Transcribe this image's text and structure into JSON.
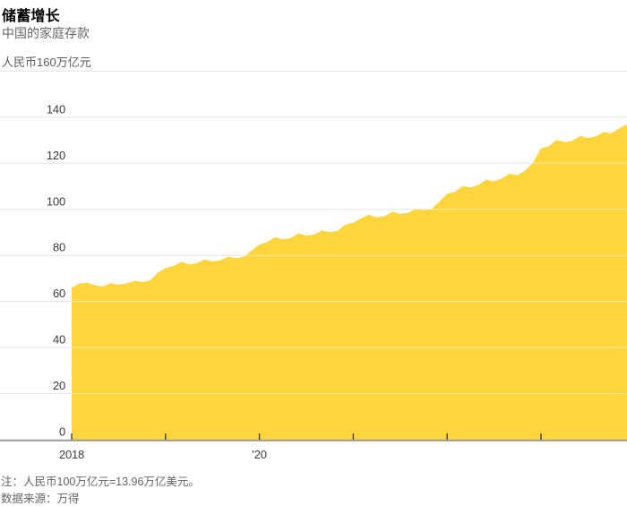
{
  "header": {
    "title": "储蓄增长",
    "subtitle": "中国的家庭存款",
    "unit_label": "人民币160万亿元"
  },
  "footer": {
    "note": "注：人民币100万亿元=13.96万亿美元。",
    "source": "数据来源：万得"
  },
  "chart_data": {
    "type": "area",
    "title": "储蓄增长",
    "subtitle": "中国的家庭存款",
    "ylabel_unit": "人民币160万亿元",
    "frequency": "monthly",
    "x_start": "2018-01",
    "x_end": "2023-12",
    "series": [
      {
        "name": "中国的家庭存款（人民币万亿元）",
        "values": [
          66.0,
          67.8,
          68.2,
          67.0,
          66.6,
          68.0,
          67.3,
          67.8,
          69.0,
          68.4,
          69.1,
          72.4,
          74.5,
          75.4,
          77.2,
          76.2,
          76.7,
          78.3,
          77.4,
          77.9,
          79.4,
          78.8,
          79.4,
          82.1,
          84.7,
          85.8,
          87.9,
          87.0,
          87.5,
          89.6,
          88.6,
          89.1,
          90.8,
          90.1,
          90.7,
          93.4,
          94.2,
          96.1,
          97.7,
          96.5,
          97.0,
          99.0,
          98.0,
          98.5,
          100.3,
          99.6,
          100.2,
          103.3,
          106.8,
          107.6,
          110.1,
          109.5,
          110.6,
          112.9,
          112.1,
          113.4,
          115.5,
          114.8,
          116.9,
          120.3,
          126.5,
          127.3,
          130.2,
          129.2,
          129.7,
          131.8,
          131.0,
          131.6,
          133.6,
          133.0,
          135.2,
          136.9
        ]
      }
    ],
    "ylim": [
      0,
      160
    ],
    "y_tick_labels": [
      0,
      20,
      40,
      60,
      80,
      100,
      120,
      140
    ],
    "y_gridline_values": [
      20,
      40,
      60,
      80,
      100,
      120,
      140,
      160
    ],
    "x_tick_labels": [
      {
        "label": "2018",
        "month_index": 0
      },
      {
        "label": "'20",
        "month_index": 24
      }
    ],
    "x_year_tick_month_indices": [
      0,
      12,
      24,
      36,
      48,
      60
    ],
    "grid": "horizontal",
    "legend": "none",
    "colors": {
      "area": "#FFD53E",
      "gridline": "#E4E4E4",
      "gridline_over_area": "rgba(255,255,255,0.55)",
      "axis_baseline": "#9C9C9C",
      "axis_tick": "#4A4A4A",
      "tick_text": "#3A3A3A",
      "muted_text": "#666666"
    }
  }
}
